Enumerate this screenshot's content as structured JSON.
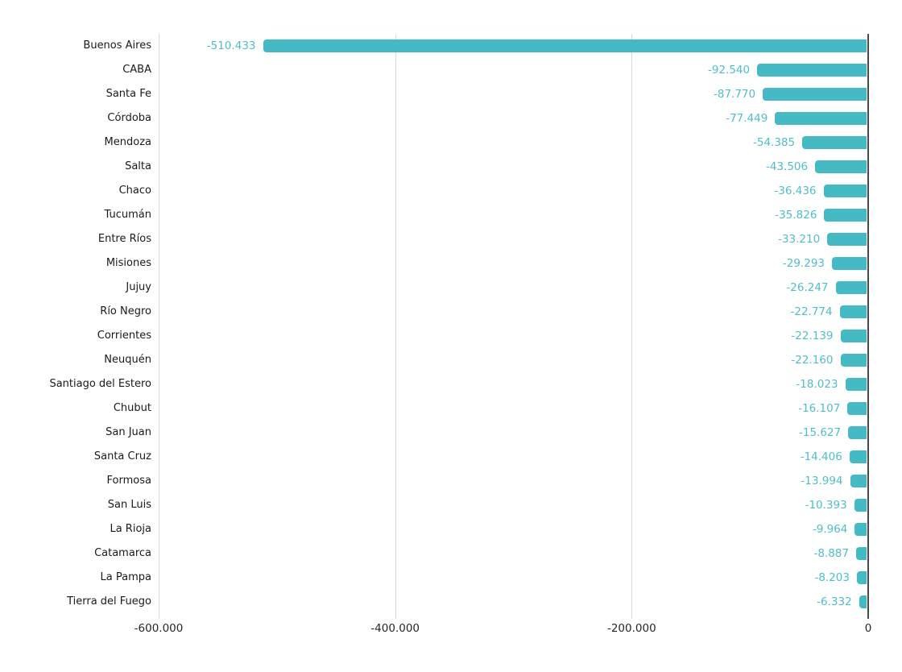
{
  "chart_data": {
    "type": "bar",
    "orientation": "horizontal",
    "title": "",
    "xlabel": "",
    "ylabel": "",
    "grid": true,
    "legend": "none",
    "xlim": [
      -600000,
      0
    ],
    "categories": [
      "Buenos Aires",
      "CABA",
      "Santa Fe",
      "Córdoba",
      "Mendoza",
      "Salta",
      "Chaco",
      "Tucumán",
      "Entre Ríos",
      "Misiones",
      "Jujuy",
      "Río Negro",
      "Corrientes",
      "Neuquén",
      "Santiago del Estero",
      "Chubut",
      "San Juan",
      "Santa Cruz",
      "Formosa",
      "San Luis",
      "La Rioja",
      "Catamarca",
      "La Pampa",
      "Tierra del Fuego"
    ],
    "values": [
      -510433,
      -92540,
      -87770,
      -77449,
      -54385,
      -43506,
      -36436,
      -35826,
      -33210,
      -29293,
      -26247,
      -22774,
      -22139,
      -22160,
      -18023,
      -16107,
      -15627,
      -14406,
      -13994,
      -10393,
      -9964,
      -8887,
      -8203,
      -6332
    ],
    "value_labels": [
      "-510.433",
      "-92.540",
      "-87.770",
      "-77.449",
      "-54.385",
      "-43.506",
      "-36.436",
      "-35.826",
      "-33.210",
      "-29.293",
      "-26.247",
      "-22.774",
      "-22.139",
      "-22.160",
      "-18.023",
      "-16.107",
      "-15.627",
      "-14.406",
      "-13.994",
      "-10.393",
      "-9.964",
      "-8.887",
      "-8.203",
      "-6.332"
    ],
    "x_ticks": [
      {
        "label": "-600.000",
        "value": -600000
      },
      {
        "label": "-400.000",
        "value": -400000
      },
      {
        "label": "-200.000",
        "value": -200000
      },
      {
        "label": "0",
        "value": 0
      }
    ],
    "colors": {
      "bar": "#45b9c4",
      "value_label": "#4fbecb",
      "gridline": "#d9d9d9",
      "zero_line": "#4a4a4a",
      "axis_text": "#262626",
      "category_text": "#1a1a1a"
    }
  }
}
